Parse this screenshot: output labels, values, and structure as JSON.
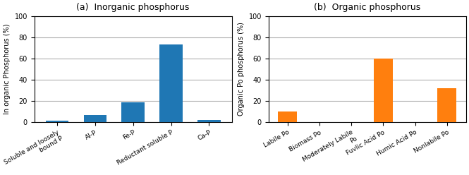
{
  "chart_data": [
    {
      "type": "bar",
      "title": "(a)  Inorganic phosphorus",
      "categories": [
        "Soluble and loosely\nbound P",
        "Al-P",
        "Fe-P",
        "Reductant soluble P",
        "Ca-P"
      ],
      "values": [
        1.5,
        6.5,
        19,
        73,
        2
      ],
      "ylabel": "In organic Phosphorus (%)",
      "ylim": [
        0,
        100
      ],
      "yticks": [
        0,
        20,
        40,
        60,
        80,
        100
      ],
      "grid": true
    },
    {
      "type": "bar",
      "title": "(b)  Organic phosphorus",
      "categories": [
        "Labile Po",
        "Biomass Po",
        "Moderately Labile\nPo",
        "Fuvlic Acid Po",
        "Humic Acid Po",
        "Nonlabile Po"
      ],
      "values": [
        10,
        0.3,
        0.3,
        60,
        0.3,
        32
      ],
      "ylabel": "Organic Po phosphorus (%)",
      "ylim": [
        0,
        100
      ],
      "yticks": [
        0,
        20,
        40,
        60,
        80,
        100
      ],
      "grid": true
    }
  ]
}
